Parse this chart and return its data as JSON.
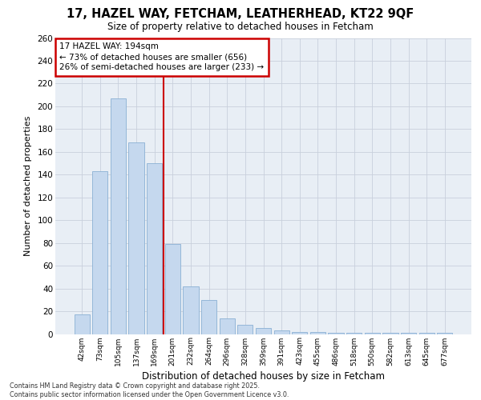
{
  "title": "17, HAZEL WAY, FETCHAM, LEATHERHEAD, KT22 9QF",
  "subtitle": "Size of property relative to detached houses in Fetcham",
  "xlabel": "Distribution of detached houses by size in Fetcham",
  "ylabel": "Number of detached properties",
  "categories": [
    "42sqm",
    "73sqm",
    "105sqm",
    "137sqm",
    "169sqm",
    "201sqm",
    "232sqm",
    "264sqm",
    "296sqm",
    "328sqm",
    "359sqm",
    "391sqm",
    "423sqm",
    "455sqm",
    "486sqm",
    "518sqm",
    "550sqm",
    "582sqm",
    "613sqm",
    "645sqm",
    "677sqm"
  ],
  "values": [
    17,
    143,
    207,
    168,
    150,
    79,
    42,
    30,
    14,
    8,
    5,
    3,
    2,
    2,
    1,
    1,
    1,
    1,
    1,
    1,
    1
  ],
  "bar_color": "#c5d8ee",
  "bar_edgecolor": "#8ab0d4",
  "property_line_x": 4.5,
  "annotation_line1": "17 HAZEL WAY: 194sqm",
  "annotation_line2": "← 73% of detached houses are smaller (656)",
  "annotation_line3": "26% of semi-detached houses are larger (233) →",
  "annotation_box_color": "#cc0000",
  "ylim": [
    0,
    260
  ],
  "yticks": [
    0,
    20,
    40,
    60,
    80,
    100,
    120,
    140,
    160,
    180,
    200,
    220,
    240,
    260
  ],
  "grid_color": "#c8d0dc",
  "background_color": "#e8eef5",
  "footer_line1": "Contains HM Land Registry data © Crown copyright and database right 2025.",
  "footer_line2": "Contains public sector information licensed under the Open Government Licence v3.0."
}
